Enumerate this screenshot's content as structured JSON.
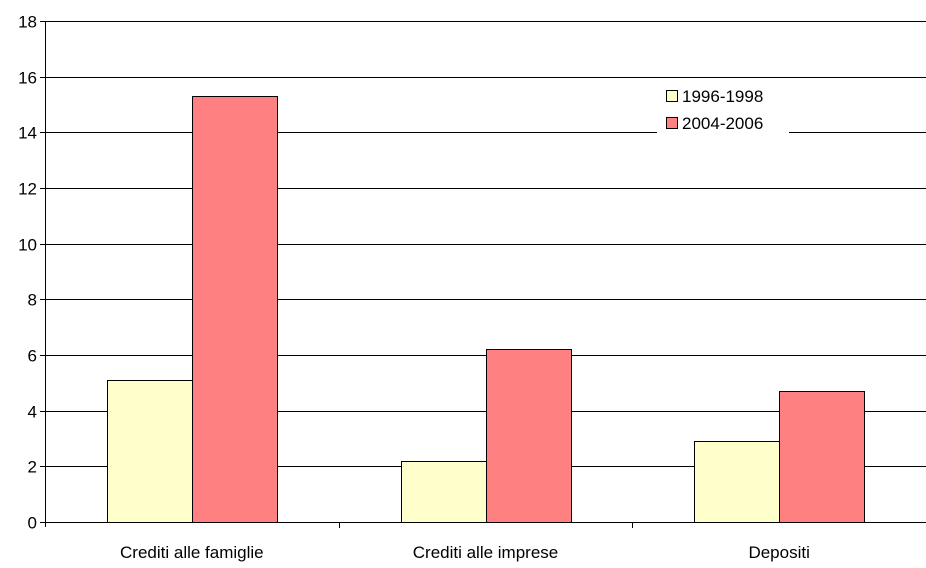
{
  "chart_data": {
    "type": "bar",
    "categories": [
      "Crediti alle famiglie",
      "Crediti alle imprese",
      "Depositi"
    ],
    "series": [
      {
        "name": "1996-1998",
        "values": [
          5.1,
          2.2,
          2.9
        ],
        "color": "#FFFFCC"
      },
      {
        "name": "2004-2006",
        "values": [
          15.3,
          6.2,
          4.7
        ],
        "color": "#FF8080"
      }
    ],
    "yticks": [
      0,
      2,
      4,
      6,
      8,
      10,
      12,
      14,
      16,
      18
    ],
    "ylim": [
      0,
      18
    ],
    "grid": true,
    "legend": "top-right",
    "title": "",
    "xlabel": "",
    "ylabel": ""
  }
}
